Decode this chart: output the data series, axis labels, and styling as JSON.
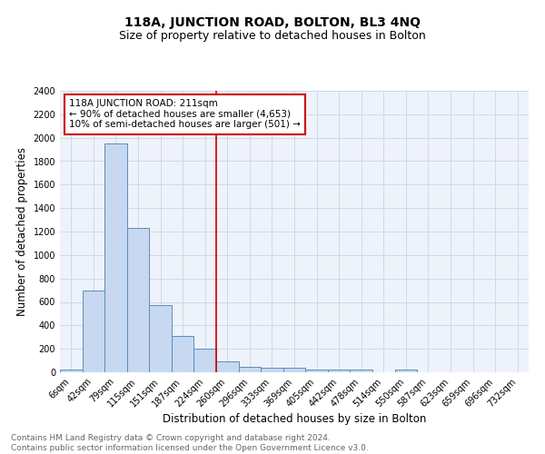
{
  "title": "118A, JUNCTION ROAD, BOLTON, BL3 4NQ",
  "subtitle": "Size of property relative to detached houses in Bolton",
  "xlabel": "Distribution of detached houses by size in Bolton",
  "ylabel": "Number of detached properties",
  "categories": [
    "6sqm",
    "42sqm",
    "79sqm",
    "115sqm",
    "151sqm",
    "187sqm",
    "224sqm",
    "260sqm",
    "296sqm",
    "333sqm",
    "369sqm",
    "405sqm",
    "442sqm",
    "478sqm",
    "514sqm",
    "550sqm",
    "587sqm",
    "623sqm",
    "659sqm",
    "696sqm",
    "732sqm"
  ],
  "values": [
    20,
    700,
    1950,
    1230,
    575,
    310,
    205,
    90,
    50,
    35,
    40,
    25,
    20,
    20,
    0,
    20,
    0,
    0,
    0,
    0,
    0
  ],
  "bar_color": "#c8d8f0",
  "bar_edge_color": "#5a8cc0",
  "grid_color": "#d0d8e8",
  "background_color": "#eef2fa",
  "vline_x": 6.5,
  "vline_color": "#cc0000",
  "annotation_text": "118A JUNCTION ROAD: 211sqm\n← 90% of detached houses are smaller (4,653)\n10% of semi-detached houses are larger (501) →",
  "annotation_box_color": "white",
  "annotation_box_edge": "#cc0000",
  "ylim": [
    0,
    2400
  ],
  "yticks": [
    0,
    200,
    400,
    600,
    800,
    1000,
    1200,
    1400,
    1600,
    1800,
    2000,
    2200,
    2400
  ],
  "footer_text": "Contains HM Land Registry data © Crown copyright and database right 2024.\nContains public sector information licensed under the Open Government Licence v3.0.",
  "title_fontsize": 10,
  "subtitle_fontsize": 9,
  "xlabel_fontsize": 8.5,
  "ylabel_fontsize": 8.5,
  "tick_fontsize": 7,
  "annotation_fontsize": 7.5,
  "footer_fontsize": 6.5
}
